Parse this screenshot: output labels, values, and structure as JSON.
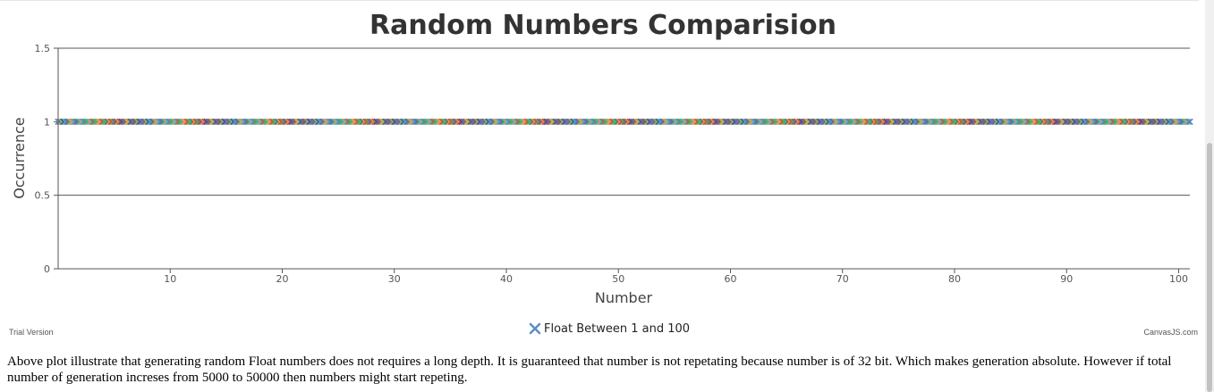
{
  "chart_data": {
    "type": "scatter",
    "title": "Random Numbers Comparision",
    "xlabel": "Number",
    "ylabel": "Occurrence",
    "xlim": [
      0,
      101
    ],
    "ylim": [
      0,
      1.5
    ],
    "x_ticks": [
      "10",
      "20",
      "30",
      "40",
      "50",
      "60",
      "70",
      "80",
      "90",
      "100"
    ],
    "y_ticks": [
      "0",
      "0.5",
      "1",
      "1.5"
    ],
    "grid": "horizontal",
    "legend_position": "bottom-center",
    "marker": "cross",
    "series": [
      {
        "name": "Float Between 1 and 100",
        "x_range": [
          1,
          101
        ],
        "y": 1
      }
    ]
  },
  "legend": {
    "label": "Float Between 1 and 100",
    "icon": "cross-icon",
    "icon_color": "#5b8fc9"
  },
  "footer": {
    "trial_text": "Trial Version",
    "brand_text": "CanvasJS.com"
  },
  "description": "Above plot illustrate that generating random Float numbers does not requires a long depth. It is guaranteed that number is not repetating because number is of 32 bit. Which makes generation absolute. However if total number of generation increses from 5000 to 50000 then numbers might start repeting."
}
